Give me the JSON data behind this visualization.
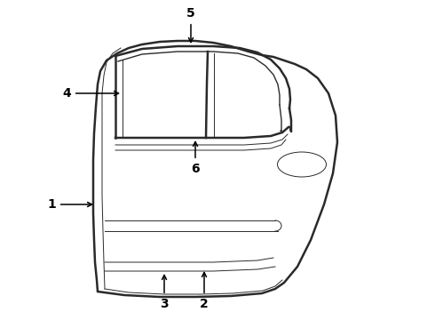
{
  "background_color": "#ffffff",
  "line_color": "#2a2a2a",
  "label_color": "#000000",
  "fig_width": 4.9,
  "fig_height": 3.6,
  "dpi": 100
}
